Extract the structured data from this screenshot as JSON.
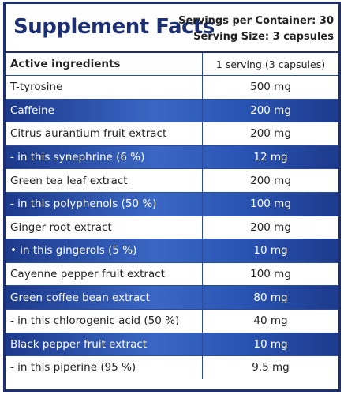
{
  "header": {
    "title": "Supplement Facts",
    "servings_per_container": "Servings per Container: 30",
    "serving_size": "Serving Size: 3 capsules"
  },
  "table": {
    "columns": [
      "Active ingredients",
      "1 serving (3 capsules)"
    ],
    "rows": [
      [
        "T-tyrosine",
        "500 mg"
      ],
      [
        "Caffeine",
        "200 mg"
      ],
      [
        "Citrus aurantium fruit extract",
        "200 mg"
      ],
      [
        "- in this synephrine (6 %)",
        "12 mg"
      ],
      [
        "Green tea leaf extract",
        "200 mg"
      ],
      [
        "- in this polyphenols (50 %)",
        "100 mg"
      ],
      [
        "Ginger root extract",
        "200 mg"
      ],
      [
        "• in this gingerols (5 %)",
        "10 mg"
      ],
      [
        "Cayenne pepper fruit extract",
        "100 mg"
      ],
      [
        "Green coffee bean extract",
        "80 mg"
      ],
      [
        "- in this chlorogenic acid (50 %)",
        "40 mg"
      ],
      [
        "Black pepper fruit extract",
        "10 mg"
      ],
      [
        "- in this piperine (95 %)",
        "9.5 mg"
      ]
    ]
  }
}
